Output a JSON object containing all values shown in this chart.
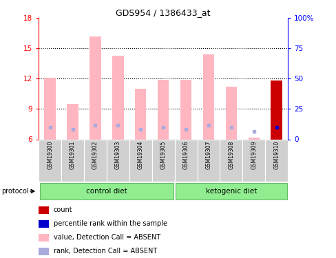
{
  "title": "GDS954 / 1386433_at",
  "samples": [
    "GSM19300",
    "GSM19301",
    "GSM19302",
    "GSM19303",
    "GSM19304",
    "GSM19305",
    "GSM19306",
    "GSM19307",
    "GSM19308",
    "GSM19309",
    "GSM19310"
  ],
  "value_bars": [
    12.1,
    9.5,
    16.2,
    14.3,
    11.0,
    11.9,
    11.9,
    14.4,
    11.2,
    6.2,
    11.8
  ],
  "rank_dots": [
    7.2,
    7.0,
    7.4,
    7.4,
    7.0,
    7.2,
    7.0,
    7.4,
    7.2,
    6.8,
    7.2
  ],
  "ymin": 6,
  "ymax": 18,
  "yticks_left": [
    6,
    9,
    12,
    15,
    18
  ],
  "yticks_right": [
    0,
    25,
    50,
    75,
    100
  ],
  "bar_color": "#ffb6c1",
  "rank_color": "#aaaadd",
  "count_color": "#cc0000",
  "count_rank_color": "#0000cc",
  "bg_color": "#ffffff",
  "plot_bg": "#ffffff",
  "control_label": "control diet",
  "ketogenic_label": "ketogenic diet",
  "protocol_label": "protocol",
  "legend_items": [
    {
      "label": "count",
      "color": "#cc0000"
    },
    {
      "label": "percentile rank within the sample",
      "color": "#0000cc"
    },
    {
      "label": "value, Detection Call = ABSENT",
      "color": "#ffb6c1"
    },
    {
      "label": "rank, Detection Call = ABSENT",
      "color": "#aaaadd"
    }
  ]
}
